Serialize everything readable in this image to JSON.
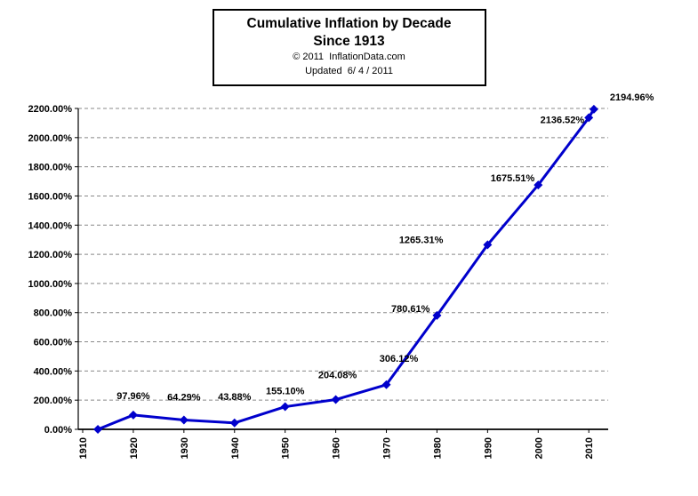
{
  "chart_data": {
    "type": "line",
    "title": "Cumulative Inflation by Decade",
    "subtitle": "Since 1913",
    "credit": "© 2011  InflationData.com",
    "updated": "Updated  6/ 4 / 2011",
    "x": [
      1913,
      1920,
      1930,
      1940,
      1950,
      1960,
      1970,
      1980,
      1990,
      2000,
      2010,
      2011
    ],
    "values": [
      0.0,
      97.96,
      64.29,
      43.88,
      155.1,
      204.08,
      306.12,
      780.61,
      1265.31,
      1675.51,
      2136.52,
      2194.96
    ],
    "point_labels": [
      "",
      "97.96%",
      "64.29%",
      "43.88%",
      "155.10%",
      "204.08%",
      "306.12%",
      "780.61%",
      "1265.31%",
      "1675.51%",
      "2136.52%",
      "2194.96%"
    ],
    "x_ticks": [
      1910,
      1920,
      1930,
      1940,
      1950,
      1960,
      1970,
      1980,
      1990,
      2000,
      2010
    ],
    "y_ticks": [
      0,
      200,
      400,
      600,
      800,
      1000,
      1200,
      1400,
      1600,
      1800,
      2000,
      2200
    ],
    "y_tick_labels": [
      "0.00%",
      "200.00%",
      "400.00%",
      "600.00%",
      "800.00%",
      "1000.00%",
      "1200.00%",
      "1400.00%",
      "1600.00%",
      "1800.00%",
      "2000.00%",
      "2200.00%"
    ],
    "xlim": [
      1910,
      2013
    ],
    "ylim": [
      0,
      2200
    ],
    "grid": "dashed horizontal gridlines",
    "legend": "none",
    "line_color": "#0000cc",
    "marker": "diamond",
    "axis_color": "#000000",
    "grid_color": "#888888"
  }
}
